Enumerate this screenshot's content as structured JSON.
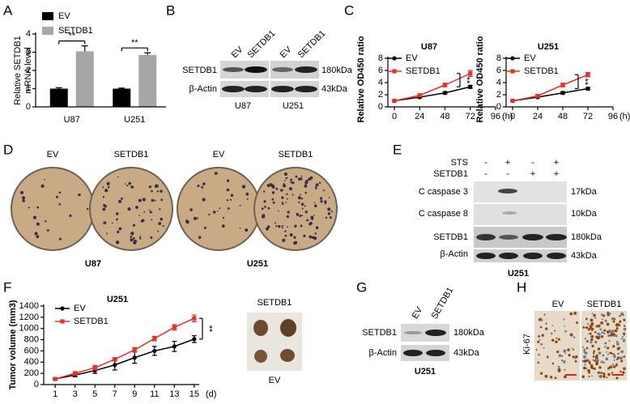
{
  "chart_data": [
    {
      "type": "bar",
      "ylabel": [
        "Relative SETDB1",
        "mRNA level"
      ],
      "categories": [
        "U87",
        "U251"
      ],
      "series": [
        {
          "name": "EV",
          "color": "#000000",
          "values": [
            1,
            1
          ],
          "errors": [
            0.05,
            0.03
          ]
        },
        {
          "name": "SETDB1",
          "color": "#a6a6a6",
          "values": [
            3.05,
            2.85
          ],
          "errors": [
            0.3,
            0.12
          ]
        }
      ],
      "ylim": [
        0,
        4
      ],
      "yticks": [
        0,
        1,
        2,
        3,
        4
      ],
      "annotations": [
        "**",
        "**"
      ]
    },
    {
      "type": "line",
      "title": "U87",
      "ylabel": "Relative OD450 ratio",
      "x": [
        0,
        24,
        48,
        72
      ],
      "x_unit": "(h)",
      "series": [
        {
          "name": "EV",
          "color": "#000000",
          "values": [
            1,
            1.6,
            2.3,
            3.3
          ],
          "errors": [
            0.05,
            0.15,
            0.2,
            0.25
          ]
        },
        {
          "name": "SETDB1",
          "color": "#e8302a",
          "values": [
            1,
            1.9,
            3.6,
            5.5
          ],
          "errors": [
            0.05,
            0.15,
            0.3,
            0.5
          ]
        }
      ],
      "xlim": [
        0,
        96
      ],
      "xticks": [
        0,
        24,
        48,
        72,
        96
      ],
      "ylim": [
        0,
        8
      ],
      "yticks": [
        0,
        2,
        4,
        6,
        8
      ],
      "annotation": "**"
    },
    {
      "type": "line",
      "title": "U251",
      "ylabel": "Relative OD450 ratio",
      "x": [
        0,
        24,
        48,
        72
      ],
      "x_unit": "(h)",
      "series": [
        {
          "name": "EV",
          "color": "#000000",
          "values": [
            1,
            1.6,
            2.3,
            3
          ],
          "errors": [
            0.05,
            0.1,
            0.2,
            0.2
          ]
        },
        {
          "name": "SETDB1",
          "color": "#e8302a",
          "values": [
            1,
            1.8,
            3.6,
            5.3
          ],
          "errors": [
            0.05,
            0.15,
            0.3,
            0.35
          ]
        }
      ],
      "xlim": [
        0,
        96
      ],
      "xticks": [
        0,
        24,
        48,
        72,
        96
      ],
      "ylim": [
        0,
        8
      ],
      "yticks": [
        0,
        2,
        4,
        6,
        8
      ],
      "annotation": "**"
    },
    {
      "type": "line",
      "title": "U251",
      "ylabel": "Tumor volume (mm3)",
      "x": [
        1,
        3,
        5,
        7,
        9,
        11,
        13,
        15
      ],
      "x_unit": "(d)",
      "series": [
        {
          "name": "EV",
          "color": "#000000",
          "values": [
            100,
            170,
            250,
            350,
            480,
            600,
            680,
            810
          ],
          "errors": [
            10,
            30,
            50,
            90,
            100,
            80,
            90,
            60
          ]
        },
        {
          "name": "SETDB1",
          "color": "#e8302a",
          "values": [
            100,
            200,
            300,
            450,
            620,
            820,
            1020,
            1180
          ],
          "errors": [
            10,
            30,
            40,
            30,
            40,
            40,
            50,
            60
          ]
        }
      ],
      "xlim": [
        0.5,
        15.5
      ],
      "xticks": [
        1,
        3,
        5,
        7,
        9,
        11,
        13,
        15
      ],
      "ylim": [
        0,
        1400
      ],
      "yticks": [
        0,
        200,
        400,
        600,
        800,
        1000,
        1200,
        1400
      ],
      "annotation": "**"
    }
  ],
  "panels": {
    "letters": [
      "A",
      "B",
      "C",
      "D",
      "E",
      "F",
      "G",
      "H"
    ],
    "b": {
      "lanes": [
        "EV",
        "SETDB1",
        "EV",
        "SETDB1"
      ],
      "rows": [
        "SETDB1",
        "β-Actin"
      ],
      "sizes": [
        "180kDa",
        "43kDa"
      ],
      "groups": [
        "U87",
        "U251"
      ]
    },
    "d": {
      "dishes": [
        "EV",
        "SETDB1",
        "EV",
        "SETDB1"
      ],
      "groups": [
        "U87",
        "U251"
      ]
    },
    "e": {
      "conditions": [
        "STS",
        "SETDB1"
      ],
      "signs": [
        [
          "-",
          "+",
          "-",
          "+"
        ],
        [
          "-",
          "-",
          "+",
          "+"
        ]
      ],
      "rows": [
        "C caspase 3",
        "C caspase 8",
        "SETDB1",
        "β-Actin"
      ],
      "sizes": [
        "17kDa",
        "10kDa",
        "180kDa",
        "43kDa"
      ],
      "group": "U251"
    },
    "f_photo": {
      "top": "SETDB1",
      "bottom": "EV"
    },
    "g": {
      "lanes": [
        "EV",
        "SETDB1"
      ],
      "rows": [
        "SETDB1",
        "β-Actin"
      ],
      "sizes": [
        "180kDa",
        "43kDa"
      ],
      "group": "U251"
    },
    "h": {
      "images": [
        "EV",
        "SETDB1"
      ],
      "stain": "Ki-67"
    }
  }
}
